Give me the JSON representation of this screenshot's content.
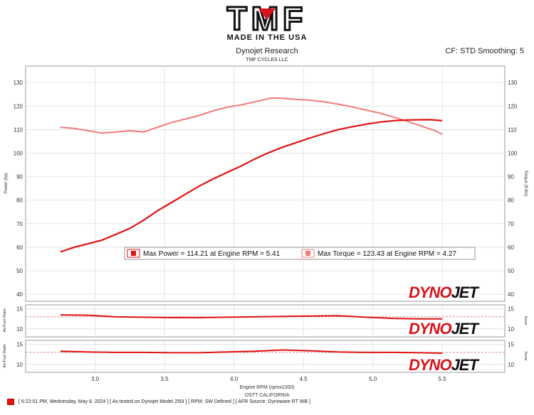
{
  "logo": {
    "brand": "TMF",
    "tagline": "MADE IN THE USA"
  },
  "header": {
    "title": "Dynojet Research",
    "subtitle": "TMF CYCLES LLC",
    "right": "CF: STD Smoothing: 5"
  },
  "axes": {
    "xlabel": "Engine RPM (rpmx1000)",
    "x_ticks": [
      "3.0",
      "3.5",
      "4.0",
      "4.5",
      "5.0",
      "5.5"
    ],
    "left_ylabel": "Power (hp)",
    "right_ylabel": "Torque (ft-lbs)",
    "y_ticks": [
      "40",
      "50",
      "60",
      "70",
      "80",
      "90",
      "100",
      "110",
      "120",
      "130"
    ],
    "afr_label": "Air/Fuel Ratio",
    "afr_right_label": "None",
    "afr_ticks": [
      "10",
      "15"
    ]
  },
  "legend": {
    "power": "Max Power = 114.21 at Engine RPM = 5.41",
    "torque": "Max Torque = 123.43 at Engine RPM = 4.27"
  },
  "watermark": {
    "dyno": "DYNO",
    "jet": "JET"
  },
  "location": "OSTT CALIFORNIA",
  "footer": "[ 6:22:01 PM, Wednesday, May 8, 2024 ] [ As tested on Dynojet Model 250i ] [ RPM: SW Defined ] [ AFR Source: Dynoware RT WB ]",
  "colors": {
    "power": "#e01212",
    "torque": "#f07a7a",
    "watermark_red": "#d7141a",
    "watermark_black": "#111111",
    "grid": "#dcdcdc",
    "reference": "#d06060"
  },
  "chart_data": [
    {
      "type": "line",
      "xlabel": "Engine RPM (rpmx1000)",
      "ylabel": "Power (hp)",
      "y2label": "Torque (ft-lbs)",
      "xlim": [
        2.5,
        5.95
      ],
      "ylim": [
        37,
        137
      ],
      "grid": true,
      "series": [
        {
          "name": "Max Power = 114.21 at Engine RPM = 5.41",
          "x": [
            2.75,
            2.85,
            2.95,
            3.05,
            3.15,
            3.25,
            3.35,
            3.45,
            3.55,
            3.65,
            3.75,
            3.85,
            3.95,
            4.05,
            4.15,
            4.25,
            4.35,
            4.45,
            4.55,
            4.65,
            4.75,
            4.85,
            4.95,
            5.05,
            5.15,
            5.25,
            5.35,
            5.41,
            5.5
          ],
          "values": [
            58,
            60,
            61.5,
            63,
            65.5,
            68,
            71.5,
            75.5,
            79,
            82.5,
            86,
            89,
            91.8,
            94.5,
            97.5,
            100.2,
            102.5,
            104.5,
            106.5,
            108.3,
            110,
            111.2,
            112.3,
            113.2,
            113.8,
            114.1,
            114.2,
            114.21,
            113.8
          ]
        },
        {
          "name": "Max Torque = 123.43 at Engine RPM = 4.27",
          "x": [
            2.75,
            2.85,
            2.95,
            3.05,
            3.15,
            3.25,
            3.35,
            3.45,
            3.55,
            3.65,
            3.75,
            3.85,
            3.95,
            4.05,
            4.15,
            4.27,
            4.35,
            4.45,
            4.55,
            4.65,
            4.75,
            4.85,
            4.95,
            5.05,
            5.15,
            5.25,
            5.35,
            5.45,
            5.5
          ],
          "values": [
            111,
            110.5,
            109.5,
            108.5,
            109,
            109.5,
            109,
            111,
            113,
            114.5,
            116,
            118,
            119.5,
            120.5,
            121.8,
            123.43,
            123.3,
            122.8,
            122.5,
            121.8,
            120.8,
            119.7,
            118.3,
            117,
            115.3,
            113.5,
            111.5,
            109.5,
            108
          ]
        }
      ]
    },
    {
      "type": "line",
      "ylabel": "Air/Fuel Ratio",
      "xlim": [
        2.5,
        5.95
      ],
      "ylim": [
        8,
        16
      ],
      "reference": 13.0,
      "series": [
        {
          "x": [
            2.75,
            2.95,
            3.15,
            3.35,
            3.55,
            3.75,
            3.95,
            4.15,
            4.35,
            4.55,
            4.75,
            4.95,
            5.15,
            5.35,
            5.5
          ],
          "values": [
            13.5,
            13.4,
            13.0,
            12.9,
            12.8,
            12.8,
            12.9,
            13.0,
            13.1,
            13.2,
            13.3,
            12.9,
            12.6,
            12.5,
            12.5
          ]
        }
      ]
    },
    {
      "type": "line",
      "ylabel": "Air/Fuel Ratio",
      "xlim": [
        2.5,
        5.95
      ],
      "ylim": [
        8,
        16
      ],
      "reference": 13.0,
      "series": [
        {
          "x": [
            2.75,
            2.95,
            3.15,
            3.35,
            3.55,
            3.75,
            3.95,
            4.15,
            4.35,
            4.55,
            4.75,
            4.95,
            5.15,
            5.35,
            5.5
          ],
          "values": [
            13.3,
            13.1,
            13.0,
            13.0,
            12.9,
            12.9,
            13.1,
            13.3,
            13.6,
            13.4,
            13.1,
            13.0,
            13.0,
            12.9,
            12.8
          ]
        }
      ]
    }
  ]
}
